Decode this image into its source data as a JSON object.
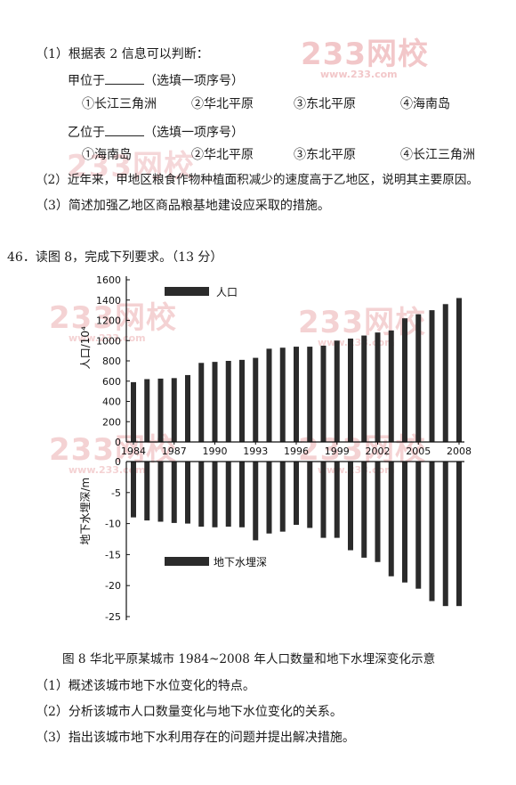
{
  "q45": {
    "p1": "（1）根据表 2 信息可以判断：",
    "jia": "甲位于",
    "jia_hint": "（选填一项序号）",
    "opts1": [
      "①长江三角洲",
      "②华北平原",
      "③东北平原",
      "④海南岛"
    ],
    "yi": "乙位于",
    "yi_hint": "（选填一项序号）",
    "opts2": [
      "①海南岛",
      "②华北平原",
      "③东北平原",
      "④长江三角洲"
    ],
    "p2": "（2）近年来，甲地区粮食作物种植面积减少的速度高于乙地区，说明其主要原因。",
    "p3": "（3）简述加强乙地区商品粮基地建设应采取的措施。"
  },
  "q46": {
    "heading": "46．读图 8，完成下列要求。（13 分）",
    "caption": "图 8  华北平原某城市 1984~2008 年人口数量和地下水埋深变化示意",
    "s1": "（1）概述该城市地下水位变化的特点。",
    "s2": "（2）分析该城市人口数量变化与地下水位变化的关系。",
    "s3": "（3）指出该城市地下水利用存在的问题并提出解决措施。"
  },
  "watermark": {
    "brand": "233网校",
    "url": "www.233.com"
  },
  "chart_data": {
    "type": "bar",
    "x": [
      1984,
      1985,
      1986,
      1987,
      1988,
      1989,
      1990,
      1991,
      1992,
      1993,
      1994,
      1995,
      1996,
      1997,
      1998,
      1999,
      2000,
      2001,
      2002,
      2003,
      2004,
      2005,
      2006,
      2007,
      2008
    ],
    "x_ticks": [
      "1984",
      "1987",
      "1990",
      "1993",
      "1996",
      "1999",
      "2002",
      "2005",
      "2008"
    ],
    "series": [
      {
        "name": "人口",
        "unit": "10⁴",
        "ylabel": "人口/10⁴",
        "ylim": [
          0,
          1600
        ],
        "yticks": [
          "0",
          "200",
          "400",
          "600",
          "800",
          "1000",
          "1200",
          "1400",
          "1600"
        ],
        "values": [
          590,
          620,
          625,
          630,
          660,
          780,
          790,
          800,
          810,
          830,
          920,
          930,
          940,
          940,
          950,
          1000,
          1020,
          1050,
          1080,
          1100,
          1220,
          1260,
          1300,
          1360,
          1420
        ]
      },
      {
        "name": "地下水埋深",
        "unit": "m",
        "ylabel": "地下水埋深/m",
        "ylim": [
          -25,
          0
        ],
        "yticks": [
          "-25",
          "-20",
          "-15",
          "-10",
          "-5",
          "0"
        ],
        "values": [
          -9.0,
          -9.5,
          -9.7,
          -9.9,
          -10.0,
          -10.5,
          -10.6,
          -10.5,
          -10.6,
          -12.7,
          -11.6,
          -11.3,
          -10.2,
          -10.7,
          -12.3,
          -12.3,
          -14.3,
          -15.5,
          -16.2,
          -18.5,
          -19.5,
          -20.5,
          -22.5,
          -23.3,
          -23.3
        ]
      }
    ],
    "legend_placement": "inside",
    "grid": false
  }
}
